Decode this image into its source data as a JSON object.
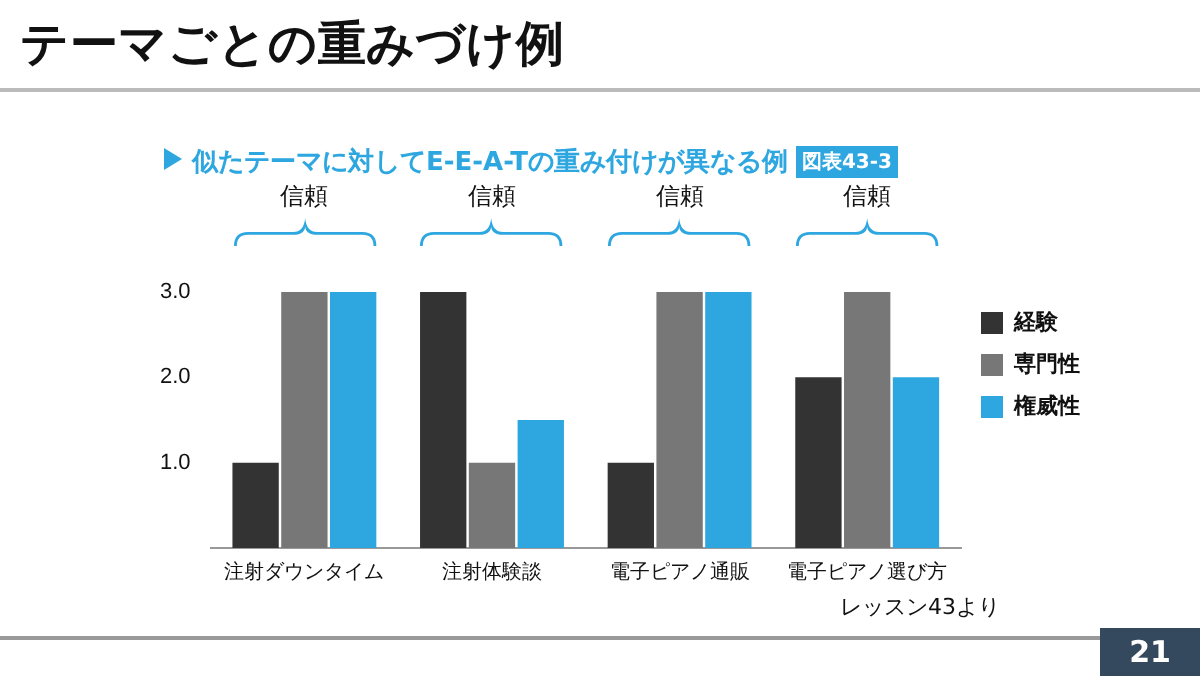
{
  "chart_data": {
    "type": "bar",
    "title": "テーマごとの重みづけ例",
    "subtitle": "似たテーマに対してE-E-A-Tの重み付けが異なる例",
    "categories": [
      "注射ダウンタイム",
      "注射体験談",
      "電子ピアノ通販",
      "電子ピアノ選び方"
    ],
    "series": [
      {
        "name": "経験",
        "color": "#333333",
        "values": [
          1,
          3,
          1,
          2
        ]
      },
      {
        "name": "専門性",
        "color": "#777777",
        "values": [
          3,
          1,
          3,
          3
        ]
      },
      {
        "name": "権威性",
        "color": "#2ea7e0",
        "values": [
          3,
          1.5,
          3,
          2
        ]
      }
    ],
    "ylim": [
      0,
      3
    ],
    "yticks": [
      {
        "value": 1,
        "label": "1.0"
      },
      {
        "value": 2,
        "label": "2.0"
      },
      {
        "value": 3,
        "label": "3.0"
      }
    ],
    "grid": false,
    "legend": "top right",
    "annotations": [
      "信頼",
      "信頼",
      "信頼",
      "信頼",
      "図表43-3",
      "レッスン43より",
      "21"
    ]
  }
}
